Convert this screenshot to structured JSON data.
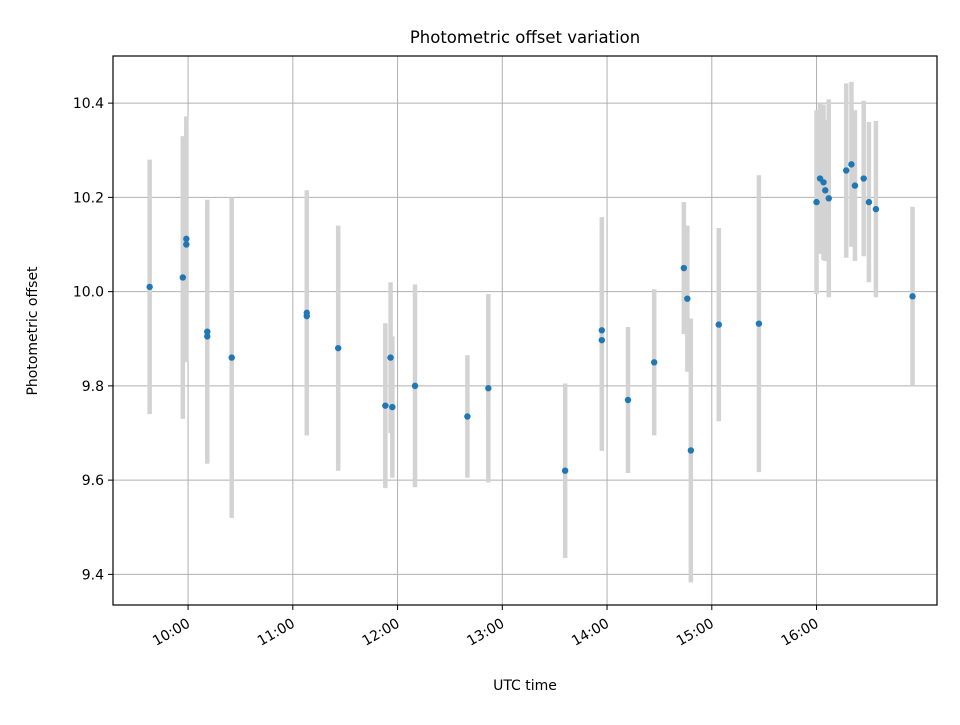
{
  "chart_data": {
    "type": "scatter",
    "title": "Photometric offset variation",
    "xlabel": "UTC time",
    "ylabel": "Photometric offset",
    "xlim": [
      "09:17",
      "17:09"
    ],
    "ylim": [
      9.335,
      10.5
    ],
    "x_ticks": [
      "10:00",
      "11:00",
      "12:00",
      "13:00",
      "14:00",
      "15:00",
      "16:00"
    ],
    "y_ticks": [
      9.4,
      9.6,
      9.8,
      10.0,
      10.2,
      10.4
    ],
    "y_tick_labels": [
      "9.4",
      "9.6",
      "9.8",
      "10.0",
      "10.2",
      "10.4"
    ],
    "grid": true,
    "colors": {
      "point": "#1f77b4",
      "errorbar": "#d3d3d3",
      "grid": "#b0b0b0"
    },
    "series": [
      {
        "points": [
          {
            "time": "09:38",
            "y": 10.01,
            "err": 0.27
          },
          {
            "time": "09:57",
            "y": 10.03,
            "err": 0.3
          },
          {
            "time": "09:59",
            "y": 10.112,
            "err": 0.26
          },
          {
            "time": "09:59",
            "y": 10.1,
            "err": 0.25
          },
          {
            "time": "10:11",
            "y": 9.915,
            "err": 0.28
          },
          {
            "time": "10:11",
            "y": 9.905,
            "err": 0.27
          },
          {
            "time": "10:25",
            "y": 9.86,
            "err": 0.34
          },
          {
            "time": "11:08",
            "y": 9.955,
            "err": 0.26
          },
          {
            "time": "11:08",
            "y": 9.948,
            "err": 0.25
          },
          {
            "time": "11:26",
            "y": 9.88,
            "err": 0.26
          },
          {
            "time": "11:53",
            "y": 9.758,
            "err": 0.175
          },
          {
            "time": "11:56",
            "y": 9.86,
            "err": 0.16
          },
          {
            "time": "11:57",
            "y": 9.755,
            "err": 0.15
          },
          {
            "time": "12:10",
            "y": 9.8,
            "err": 0.215
          },
          {
            "time": "12:40",
            "y": 9.735,
            "err": 0.13
          },
          {
            "time": "12:52",
            "y": 9.795,
            "err": 0.2
          },
          {
            "time": "13:36",
            "y": 9.62,
            "err": 0.185
          },
          {
            "time": "13:57",
            "y": 9.918,
            "err": 0.24
          },
          {
            "time": "13:57",
            "y": 9.897,
            "err": 0.235
          },
          {
            "time": "14:12",
            "y": 9.77,
            "err": 0.155
          },
          {
            "time": "14:27",
            "y": 9.85,
            "err": 0.155
          },
          {
            "time": "14:44",
            "y": 10.05,
            "err": 0.14
          },
          {
            "time": "14:46",
            "y": 9.985,
            "err": 0.155
          },
          {
            "time": "14:48",
            "y": 9.663,
            "err": 0.28
          },
          {
            "time": "15:04",
            "y": 9.93,
            "err": 0.205
          },
          {
            "time": "15:27",
            "y": 9.932,
            "err": 0.315
          },
          {
            "time": "16:00",
            "y": 10.19,
            "err": 0.195
          },
          {
            "time": "16:02",
            "y": 10.24,
            "err": 0.16
          },
          {
            "time": "16:04",
            "y": 10.232,
            "err": 0.165
          },
          {
            "time": "16:05",
            "y": 10.215,
            "err": 0.15
          },
          {
            "time": "16:07",
            "y": 10.198,
            "err": 0.21
          },
          {
            "time": "16:17",
            "y": 10.257,
            "err": 0.185
          },
          {
            "time": "16:20",
            "y": 10.27,
            "err": 0.175
          },
          {
            "time": "16:22",
            "y": 10.225,
            "err": 0.16
          },
          {
            "time": "16:27",
            "y": 10.24,
            "err": 0.165
          },
          {
            "time": "16:30",
            "y": 10.19,
            "err": 0.17
          },
          {
            "time": "16:34",
            "y": 10.175,
            "err": 0.187
          },
          {
            "time": "16:55",
            "y": 9.99,
            "err": 0.19
          }
        ]
      }
    ]
  }
}
